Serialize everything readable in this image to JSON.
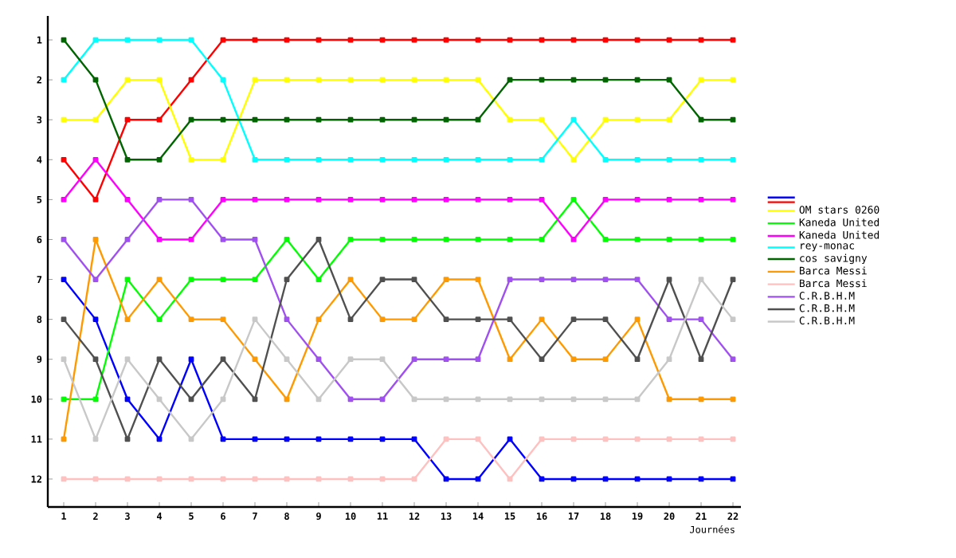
{
  "chart_data": {
    "type": "line",
    "xlabel": "Journées",
    "x": [
      1,
      2,
      3,
      4,
      5,
      6,
      7,
      8,
      9,
      10,
      11,
      12,
      13,
      14,
      15,
      16,
      17,
      18,
      19,
      20,
      21,
      22
    ],
    "xlim": [
      0.5,
      22.25
    ],
    "xticks": [
      1,
      2,
      3,
      4,
      5,
      6,
      7,
      8,
      9,
      10,
      11,
      12,
      13,
      14,
      15,
      16,
      17,
      18,
      19,
      20,
      21,
      22
    ],
    "ylim": [
      12.7,
      0.4
    ],
    "yticks": [
      1,
      2,
      3,
      4,
      5,
      6,
      7,
      8,
      9,
      10,
      11,
      12
    ],
    "marker": "square",
    "line_style": "solid",
    "legend": "right",
    "grid": false,
    "series": [
      {
        "color": "#0000ff",
        "values": [
          7,
          8,
          10,
          11,
          9,
          11,
          11,
          11,
          11,
          11,
          11,
          11,
          12,
          12,
          11,
          12,
          12,
          12,
          12,
          12,
          12,
          12
        ]
      },
      {
        "color": "#ff0000",
        "values": [
          4,
          5,
          3,
          3,
          2,
          1,
          1,
          1,
          1,
          1,
          1,
          1,
          1,
          1,
          1,
          1,
          1,
          1,
          1,
          1,
          1,
          1
        ]
      },
      {
        "name": "OM stars 0260",
        "color": "#ffff00",
        "values": [
          3,
          3,
          2,
          2,
          4,
          4,
          2,
          2,
          2,
          2,
          2,
          2,
          2,
          2,
          3,
          3,
          4,
          3,
          3,
          3,
          2,
          2
        ]
      },
      {
        "name": "Kaneda United",
        "color": "#00ff00",
        "values": [
          10,
          10,
          7,
          8,
          7,
          7,
          7,
          6,
          7,
          6,
          6,
          6,
          6,
          6,
          6,
          6,
          5,
          6,
          6,
          6,
          6,
          6
        ]
      },
      {
        "name": "Kaneda United",
        "color": "#ff00ff",
        "values": [
          5,
          4,
          5,
          6,
          6,
          5,
          5,
          5,
          5,
          5,
          5,
          5,
          5,
          5,
          5,
          5,
          6,
          5,
          5,
          5,
          5,
          5
        ]
      },
      {
        "name": "rey-monac",
        "color": "#00ffff",
        "values": [
          2,
          1,
          1,
          1,
          1,
          2,
          4,
          4,
          4,
          4,
          4,
          4,
          4,
          4,
          4,
          4,
          3,
          4,
          4,
          4,
          4,
          4
        ]
      },
      {
        "name": "cos savigny",
        "color": "#006400",
        "values": [
          1,
          2,
          4,
          4,
          3,
          3,
          3,
          3,
          3,
          3,
          3,
          3,
          3,
          3,
          2,
          2,
          2,
          2,
          2,
          2,
          3,
          3
        ]
      },
      {
        "name": "Barca Messi",
        "color": "#ff9900",
        "values": [
          11,
          6,
          8,
          7,
          8,
          8,
          9,
          10,
          8,
          7,
          8,
          8,
          7,
          7,
          9,
          8,
          9,
          9,
          8,
          10,
          10,
          10
        ]
      },
      {
        "name": "Barca Messi",
        "color": "#ffc0c0",
        "values": [
          12,
          12,
          12,
          12,
          12,
          12,
          12,
          12,
          12,
          12,
          12,
          12,
          11,
          11,
          12,
          11,
          11,
          11,
          11,
          11,
          11,
          11
        ]
      },
      {
        "name": "C.R.B.H.M",
        "color": "#a050f0",
        "values": [
          6,
          7,
          6,
          5,
          5,
          6,
          6,
          8,
          9,
          10,
          10,
          9,
          9,
          9,
          7,
          7,
          7,
          7,
          7,
          8,
          8,
          9
        ]
      },
      {
        "name": "C.R.B.H.M",
        "color": "#505050",
        "values": [
          8,
          9,
          11,
          9,
          10,
          9,
          10,
          7,
          6,
          8,
          7,
          7,
          8,
          8,
          8,
          9,
          8,
          8,
          9,
          7,
          9,
          7
        ]
      },
      {
        "name": "C.R.B.H.M",
        "color": "#c8c8c8",
        "values": [
          9,
          11,
          9,
          10,
          11,
          10,
          8,
          9,
          10,
          9,
          9,
          10,
          10,
          10,
          10,
          10,
          10,
          10,
          10,
          9,
          7,
          8
        ]
      }
    ]
  }
}
